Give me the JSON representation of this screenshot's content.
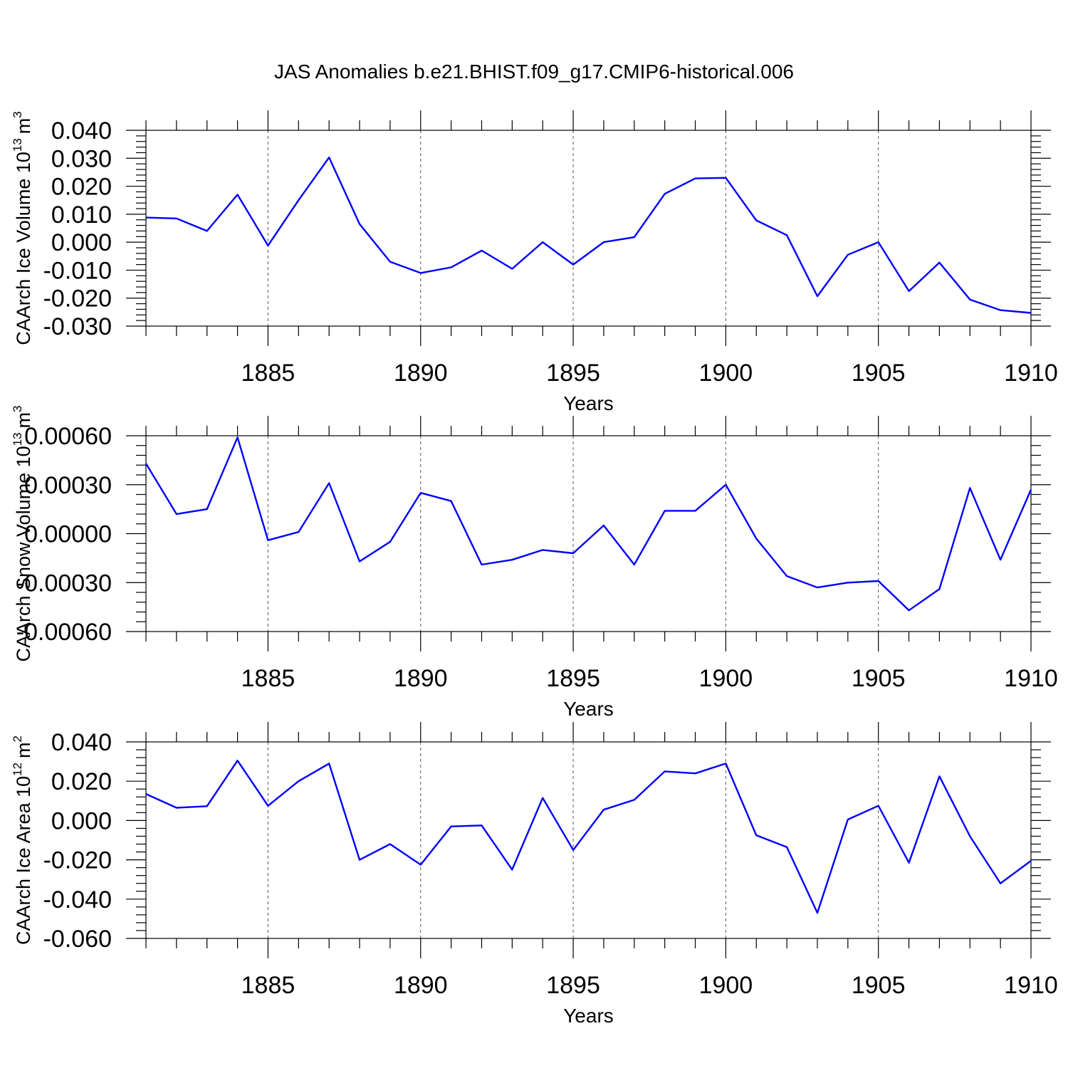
{
  "title": "JAS Anomalies b.e21.BHIST.f09_g17.CMIP6-historical.006",
  "colors": {
    "series": "#0000ff",
    "axis": "#000000",
    "grid": "#555555"
  },
  "chart_data": [
    {
      "type": "line",
      "name": "ice-volume",
      "ylabel": "CAArch Ice Volume 10",
      "ylabel_sup": "13",
      "ylabel_unit": "m",
      "ylabel_unit_sup": "3",
      "xlabel": "Years",
      "xlim": [
        1881,
        1910
      ],
      "ylim": [
        -0.03,
        0.04
      ],
      "yticks": [
        -0.03,
        -0.02,
        -0.01,
        0.0,
        0.01,
        0.02,
        0.03,
        0.04
      ],
      "ytick_labels": [
        "-0.030",
        "-0.020",
        "-0.010",
        "0.000",
        "0.010",
        "0.020",
        "0.030",
        "0.040"
      ],
      "xticks": [
        1885,
        1890,
        1895,
        1900,
        1905,
        1910
      ],
      "xtick_labels": [
        "1885",
        "1890",
        "1895",
        "1900",
        "1905",
        "1910"
      ],
      "x": [
        1881,
        1882,
        1883,
        1884,
        1885,
        1886,
        1887,
        1888,
        1889,
        1890,
        1891,
        1892,
        1893,
        1894,
        1895,
        1896,
        1897,
        1898,
        1899,
        1900,
        1901,
        1902,
        1903,
        1904,
        1905,
        1906,
        1907,
        1908,
        1909,
        1910
      ],
      "values": [
        0.0088,
        0.0085,
        0.004,
        0.017,
        -0.0012,
        0.015,
        0.0303,
        0.0065,
        -0.007,
        -0.011,
        -0.009,
        -0.003,
        -0.0095,
        0.0,
        -0.008,
        0.0,
        0.0018,
        0.0173,
        0.0228,
        0.023,
        0.0078,
        0.0025,
        -0.0193,
        -0.0045,
        0.0,
        -0.0175,
        -0.0073,
        -0.0205,
        -0.0243,
        -0.0253
      ]
    },
    {
      "type": "line",
      "name": "snow-volume",
      "ylabel": "CAArch Snow Volume 10",
      "ylabel_sup": "13",
      "ylabel_unit": "m",
      "ylabel_unit_sup": "3",
      "xlabel": "Years",
      "xlim": [
        1881,
        1910
      ],
      "ylim": [
        -0.0006,
        0.0006
      ],
      "yticks": [
        -0.0006,
        -0.0003,
        0.0,
        0.0003,
        0.0006
      ],
      "ytick_labels": [
        "-0.00060",
        "-0.00030",
        "0.00000",
        "0.00030",
        "0.00060"
      ],
      "xticks": [
        1885,
        1890,
        1895,
        1900,
        1905,
        1910
      ],
      "xtick_labels": [
        "1885",
        "1890",
        "1895",
        "1900",
        "1905",
        "1910"
      ],
      "x": [
        1881,
        1882,
        1883,
        1884,
        1885,
        1886,
        1887,
        1888,
        1889,
        1890,
        1891,
        1892,
        1893,
        1894,
        1895,
        1896,
        1897,
        1898,
        1899,
        1900,
        1901,
        1902,
        1903,
        1904,
        1905,
        1906,
        1907,
        1908,
        1909,
        1910
      ],
      "values": [
        0.00043,
        0.00012,
        0.00015,
        0.00059,
        -4e-05,
        1e-05,
        0.00031,
        -0.00017,
        -5e-05,
        0.00025,
        0.0002,
        -0.00019,
        -0.00016,
        -0.0001,
        -0.00012,
        5e-05,
        -0.00019,
        0.00014,
        0.00014,
        0.0003,
        -3e-05,
        -0.00026,
        -0.00033,
        -0.0003,
        -0.00029,
        -0.00047,
        -0.00034,
        0.00028,
        -0.00016,
        0.00027
      ]
    },
    {
      "type": "line",
      "name": "ice-area",
      "ylabel": "CAArch Ice Area 10",
      "ylabel_sup": "12",
      "ylabel_unit": "m",
      "ylabel_unit_sup": "2",
      "xlabel": "Years",
      "xlim": [
        1881,
        1910
      ],
      "ylim": [
        -0.06,
        0.04
      ],
      "yticks": [
        -0.06,
        -0.04,
        -0.02,
        0.0,
        0.02,
        0.04
      ],
      "ytick_labels": [
        "-0.060",
        "-0.040",
        "-0.020",
        "0.000",
        "0.020",
        "0.040"
      ],
      "xticks": [
        1885,
        1890,
        1895,
        1900,
        1905,
        1910
      ],
      "xtick_labels": [
        "1885",
        "1890",
        "1895",
        "1900",
        "1905",
        "1910"
      ],
      "x": [
        1881,
        1882,
        1883,
        1884,
        1885,
        1886,
        1887,
        1888,
        1889,
        1890,
        1891,
        1892,
        1893,
        1894,
        1895,
        1896,
        1897,
        1898,
        1899,
        1900,
        1901,
        1902,
        1903,
        1904,
        1905,
        1906,
        1907,
        1908,
        1909,
        1910
      ],
      "values": [
        0.0135,
        0.0065,
        0.0073,
        0.0305,
        0.0075,
        0.02,
        0.029,
        -0.02,
        -0.012,
        -0.0225,
        -0.003,
        -0.0025,
        -0.025,
        0.0115,
        -0.015,
        0.0055,
        0.0105,
        0.025,
        0.024,
        0.029,
        -0.0075,
        -0.0135,
        -0.047,
        0.0005,
        0.0075,
        -0.0215,
        0.0225,
        -0.008,
        -0.032,
        -0.0205
      ]
    }
  ]
}
